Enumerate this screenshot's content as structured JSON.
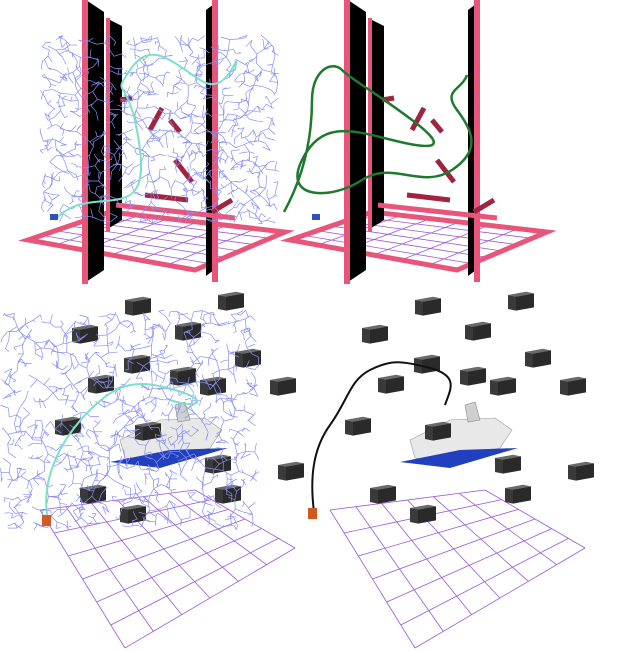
{
  "figure": {
    "panels": [
      {
        "id": "top-left",
        "scene": "pillars",
        "view": "search-tree"
      },
      {
        "id": "top-right",
        "scene": "pillars",
        "view": "path-only"
      },
      {
        "id": "bottom-left",
        "scene": "shuttle",
        "view": "search-tree"
      },
      {
        "id": "bottom-right",
        "scene": "shuttle",
        "view": "path-only"
      }
    ],
    "colors": {
      "frame": "#e8557a",
      "frame_dark": "#b83a5c",
      "wall": "#000000",
      "grid": "#9b58d6",
      "tree": "#8a8ff0",
      "tree_path": "#7fe0c8",
      "path_green": "#1f7a2f",
      "path_black": "#111111",
      "box_front": "#3a3a3a",
      "box_top": "#6a6a6a",
      "robot": "#d05a20",
      "shuttle_body": "#e8e8e8",
      "shuttle_blue": "#2040c0"
    }
  }
}
